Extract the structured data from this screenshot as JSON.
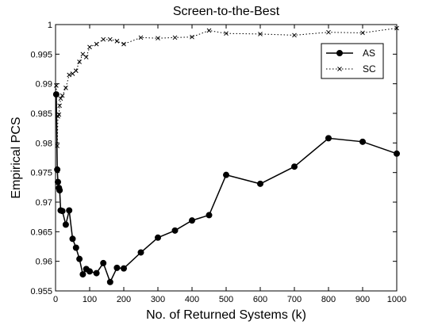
{
  "chart_data": {
    "type": "line",
    "title": "Screen-to-the-Best",
    "xlabel": "No. of Returned Systems (k)",
    "ylabel": "Empirical PCS",
    "xlim": [
      0,
      1000
    ],
    "ylim": [
      0.955,
      1
    ],
    "xticks": [
      0,
      100,
      200,
      300,
      400,
      500,
      600,
      700,
      800,
      900,
      1000
    ],
    "yticks": [
      0.955,
      0.96,
      0.965,
      0.97,
      0.975,
      0.98,
      0.985,
      0.99,
      0.995,
      1
    ],
    "ytick_labels": [
      "0.955",
      "0.96",
      "0.965",
      "0.97",
      "0.975",
      "0.98",
      "0.985",
      "0.99",
      "0.995",
      "1"
    ],
    "grid": false,
    "legend_position": "top-right",
    "series": [
      {
        "name": "AS",
        "style": "solid",
        "marker": "circle",
        "color": "#000000",
        "x": [
          2,
          5,
          7,
          10,
          12,
          15,
          20,
          30,
          40,
          50,
          60,
          70,
          80,
          90,
          100,
          120,
          140,
          160,
          180,
          200,
          250,
          300,
          350,
          400,
          450,
          500,
          600,
          700,
          800,
          900,
          1000
        ],
        "y": [
          0.9882,
          0.9755,
          0.9734,
          0.9724,
          0.972,
          0.9686,
          0.9685,
          0.9662,
          0.9686,
          0.9638,
          0.9623,
          0.9604,
          0.9578,
          0.9587,
          0.9583,
          0.958,
          0.9597,
          0.9565,
          0.9589,
          0.9588,
          0.9615,
          0.964,
          0.9652,
          0.9669,
          0.9678,
          0.9746,
          0.9731,
          0.976,
          0.9808,
          0.9802,
          0.9782
        ]
      },
      {
        "name": "SC",
        "style": "dotted",
        "marker": "x",
        "color": "#000000",
        "x": [
          2,
          5,
          7,
          10,
          12,
          15,
          20,
          30,
          40,
          50,
          60,
          70,
          80,
          90,
          100,
          120,
          140,
          160,
          180,
          200,
          250,
          300,
          350,
          400,
          450,
          500,
          600,
          700,
          800,
          900,
          1000
        ],
        "y": [
          0.9897,
          0.9795,
          0.9845,
          0.9848,
          0.9863,
          0.9875,
          0.988,
          0.9893,
          0.9915,
          0.9917,
          0.9922,
          0.9937,
          0.995,
          0.9945,
          0.9962,
          0.9967,
          0.9975,
          0.9975,
          0.9972,
          0.9967,
          0.9978,
          0.9977,
          0.9978,
          0.9979,
          0.999,
          0.9985,
          0.9984,
          0.9982,
          0.9987,
          0.9986,
          0.9994
        ]
      }
    ]
  }
}
